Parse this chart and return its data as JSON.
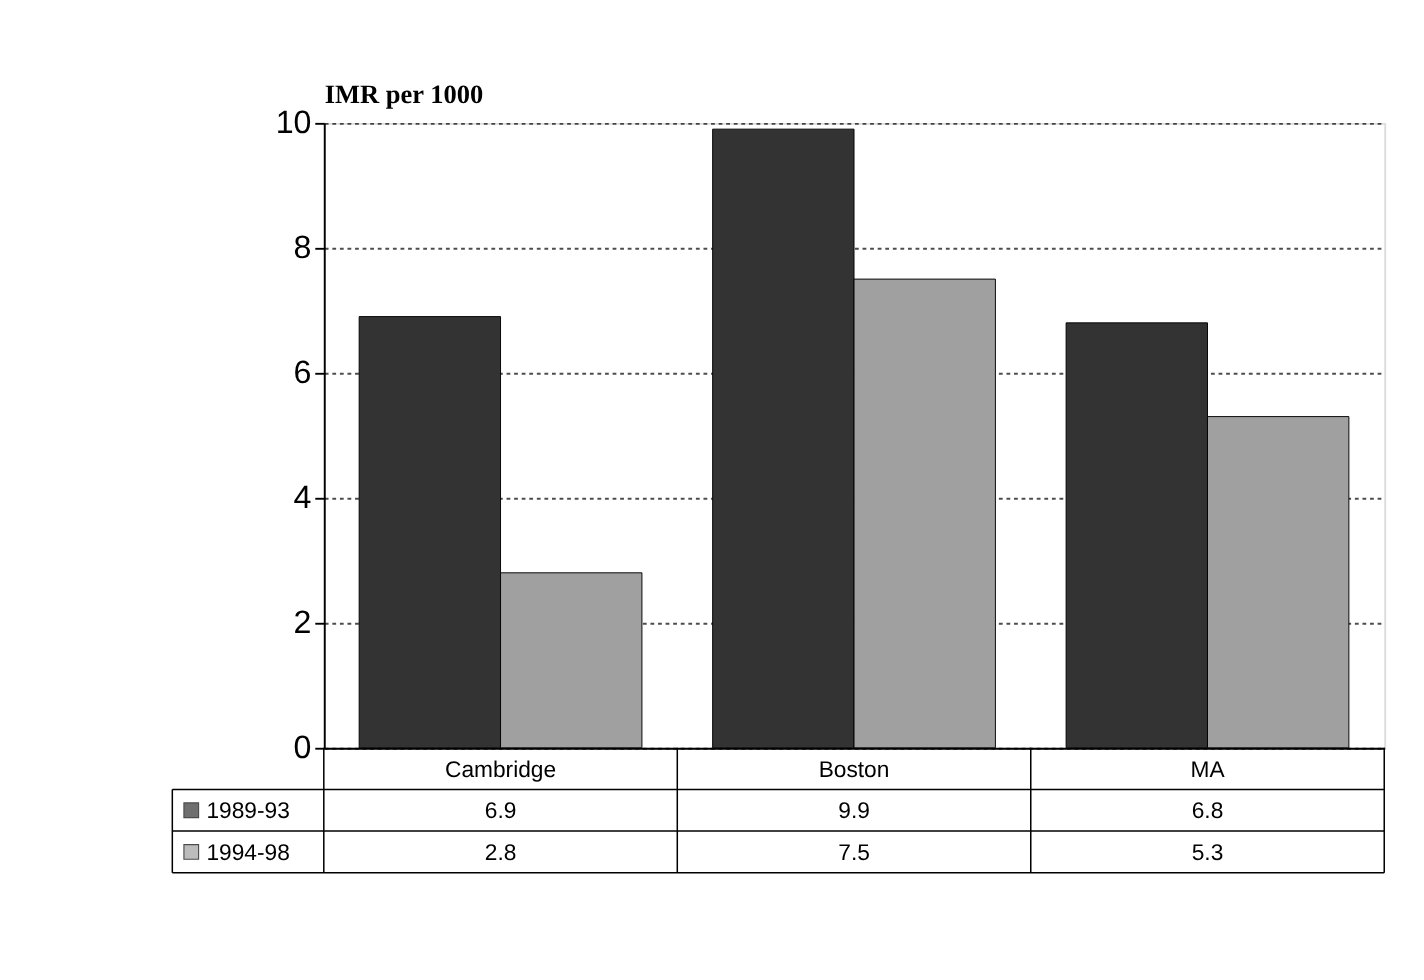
{
  "chart_data": {
    "type": "bar",
    "ylabel": "IMR per 1000",
    "categories": [
      "Cambridge",
      "Boston",
      "MA"
    ],
    "series": [
      {
        "name": "1989-93",
        "color": "#333333",
        "values": [
          6.9,
          9.9,
          6.8
        ]
      },
      {
        "name": "1994-98",
        "color": "#a0a0a0",
        "values": [
          2.8,
          7.5,
          5.3
        ]
      }
    ],
    "ylim": [
      0,
      10
    ],
    "yticks": [
      0,
      2,
      4,
      6,
      8,
      10
    ],
    "grid": "y",
    "legend": "bottom",
    "data_labels": true
  }
}
